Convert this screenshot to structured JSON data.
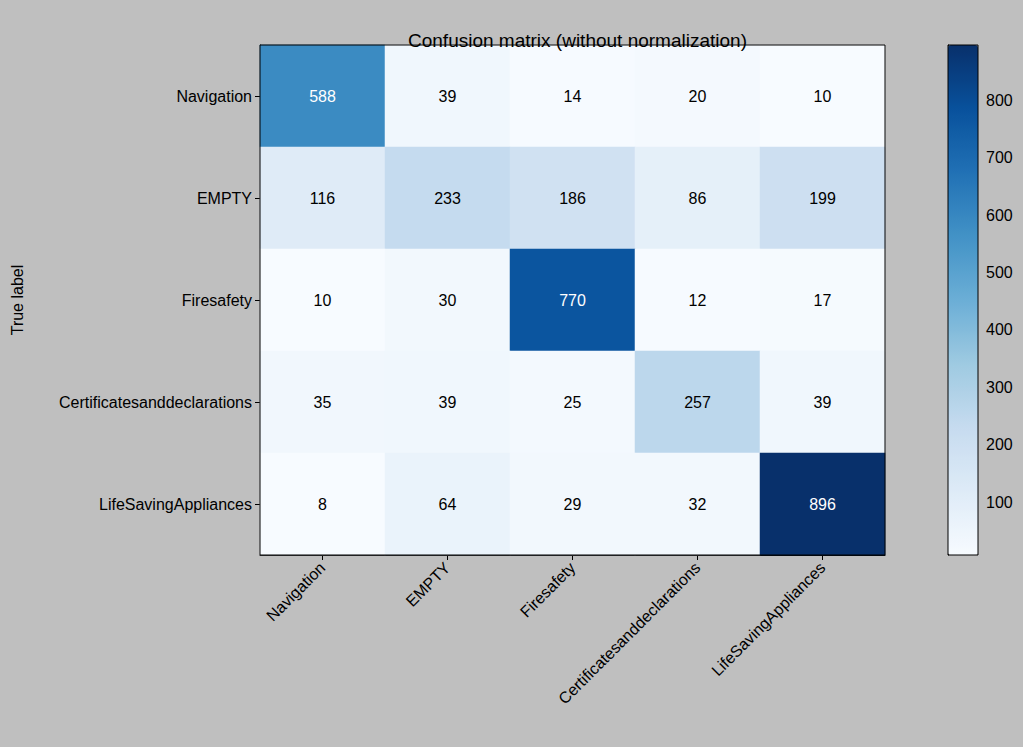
{
  "chart_data": {
    "type": "heatmap",
    "title": "Confusion matrix (without normalization)",
    "y_label": "True label",
    "x_categories": [
      "Navigation",
      "EMPTY",
      "Firesafety",
      "Certificatesanddeclarations",
      "LifeSavingAppliances"
    ],
    "y_categories": [
      "Navigation",
      "EMPTY",
      "Firesafety",
      "Certificatesanddeclarations",
      "LifeSavingAppliances"
    ],
    "cells": [
      [
        588,
        39,
        14,
        20,
        10
      ],
      [
        116,
        233,
        186,
        86,
        199
      ],
      [
        10,
        30,
        770,
        12,
        17
      ],
      [
        35,
        39,
        25,
        257,
        39
      ],
      [
        8,
        64,
        29,
        32,
        896
      ]
    ],
    "data_labels": true,
    "color": "Blues",
    "colorbar": {
      "range": [
        8,
        896
      ],
      "ticks": [
        100,
        200,
        300,
        400,
        500,
        600,
        700,
        800
      ]
    }
  }
}
